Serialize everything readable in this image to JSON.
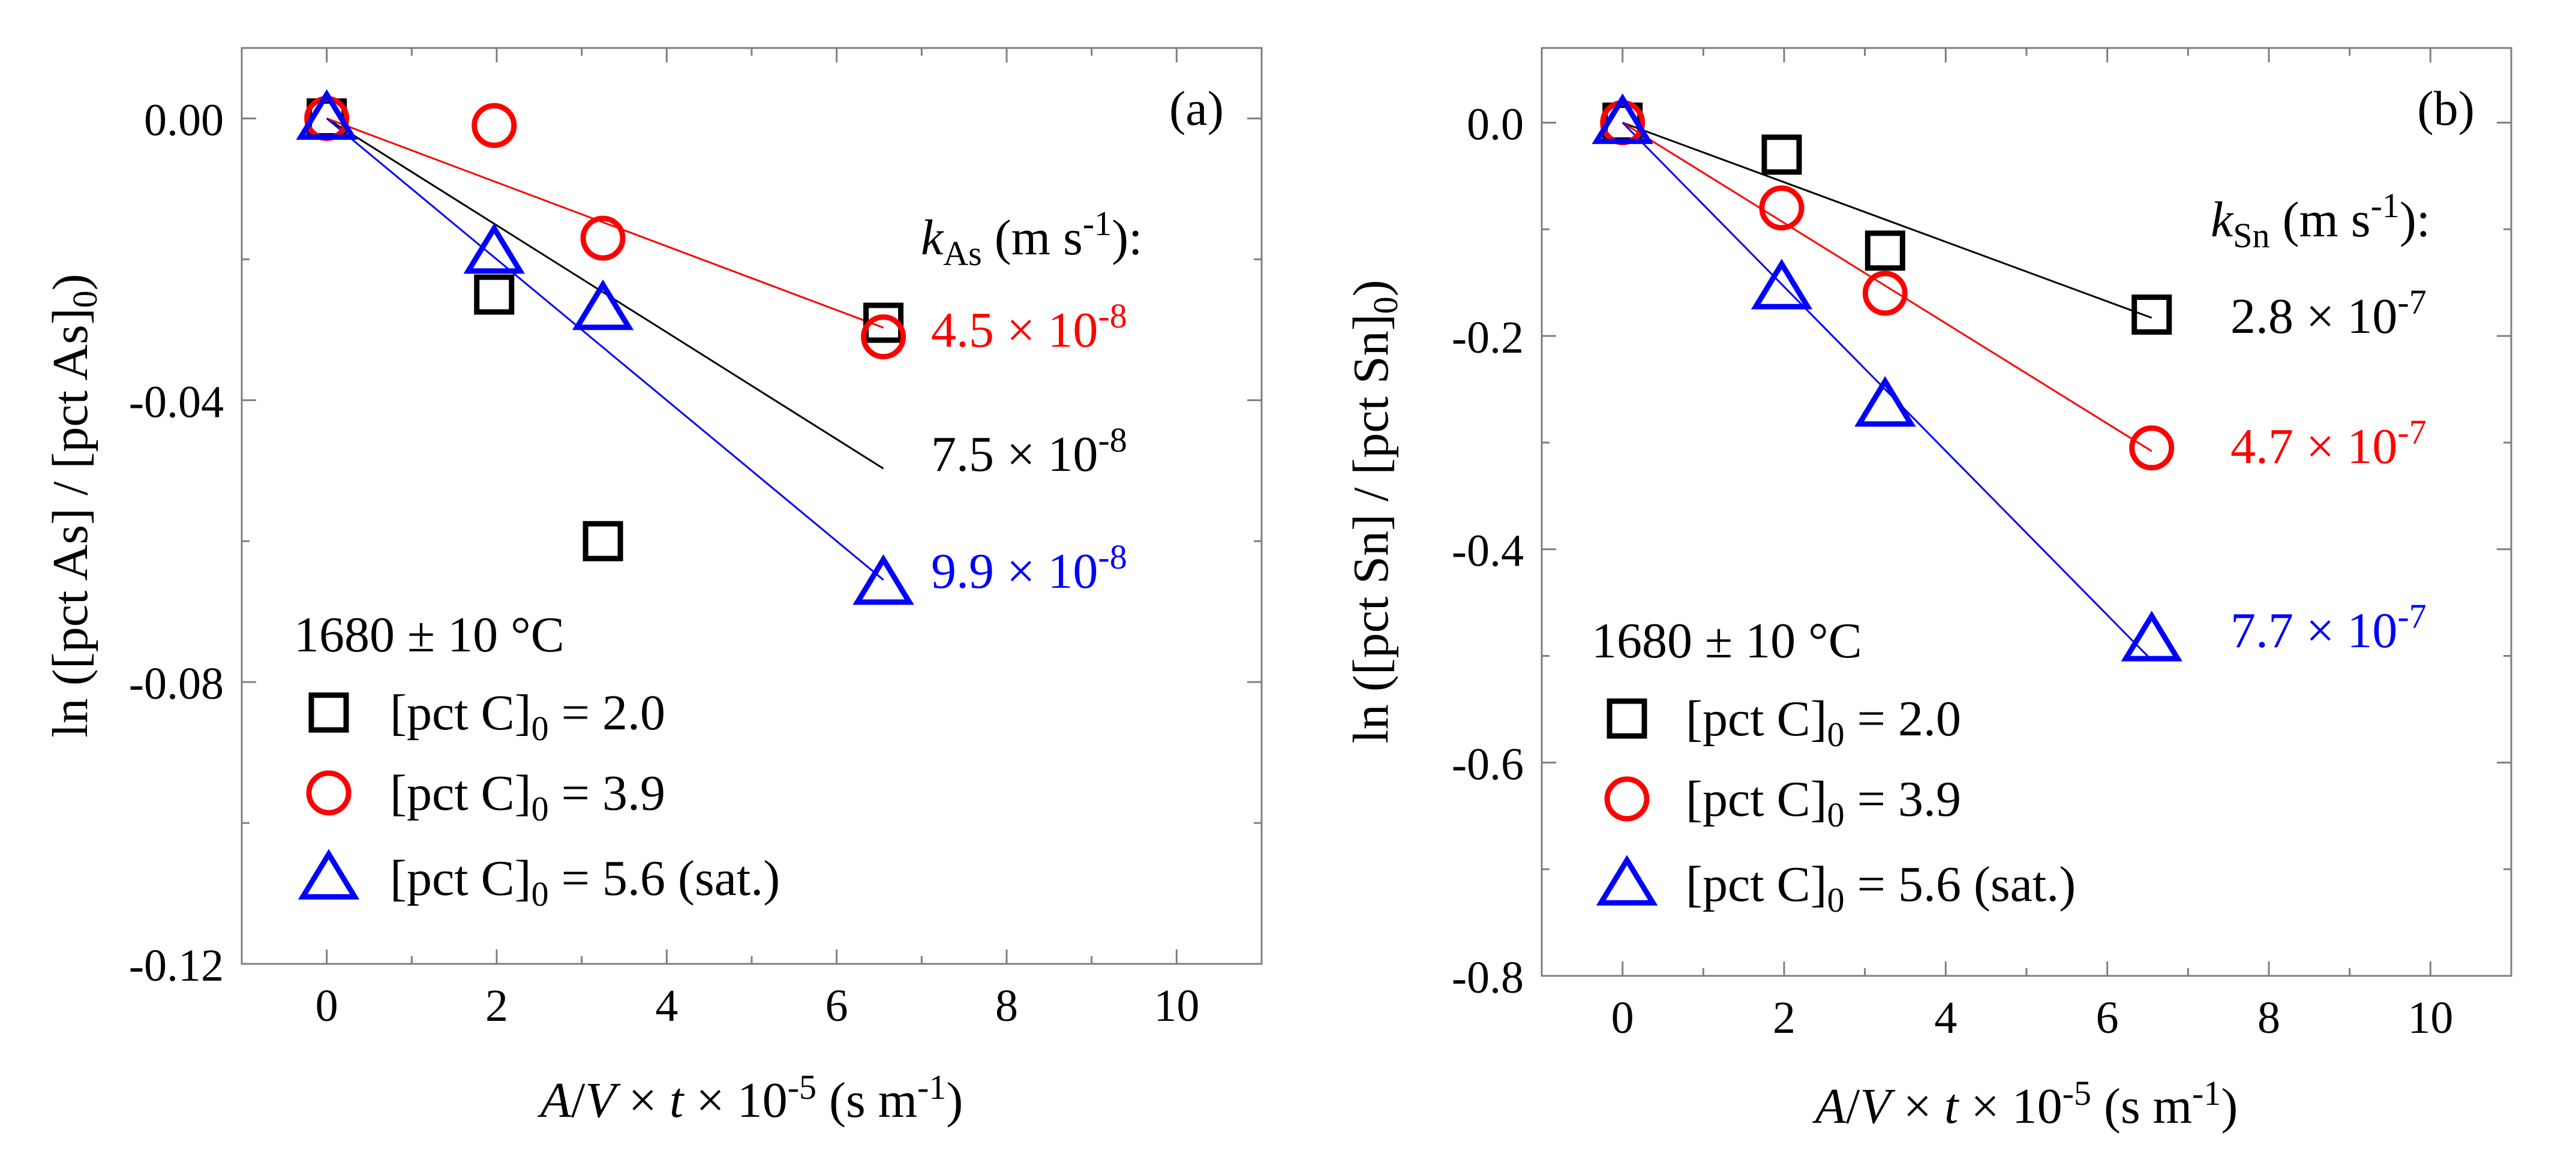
{
  "chart_data": [
    {
      "type": "scatter",
      "panel_label": "(a)",
      "xlabel": "A/V × t × 10-5 (s m-1)",
      "ylabel": "ln ([pct As] / [pct As]0)",
      "xlim": [
        -1,
        11
      ],
      "ylim": [
        -0.12,
        0.01
      ],
      "xticks": [
        0,
        2,
        4,
        6,
        8,
        10
      ],
      "yticks": [
        0.0,
        -0.04,
        -0.08,
        -0.12
      ],
      "xtick_labels": [
        "0",
        "2",
        "4",
        "6",
        "8",
        "10"
      ],
      "ytick_labels": [
        "0.00",
        "-0.04",
        "-0.08",
        "-0.12"
      ],
      "k_label": {
        "symbol": "k",
        "sub": "As",
        "unit": "(m s",
        "exp": "-1",
        "close": "):"
      },
      "temperature": "1680 ± 10 °C",
      "series": [
        {
          "name": "[pct C]0 = 2.0",
          "legend_prefix": "[pct C]",
          "legend_sub": "0",
          "legend_rest": " = 2.0",
          "marker": "square",
          "color": "#000000",
          "x": [
            0,
            1.97,
            3.25,
            6.55
          ],
          "y": [
            0.0,
            -0.025,
            -0.06,
            -0.029
          ],
          "fit_x": [
            0,
            6.55
          ],
          "fit_y": [
            0,
            -0.0497
          ],
          "rate_label": "7.5 × 10",
          "rate_exp": "-8"
        },
        {
          "name": "[pct C]0 = 3.9",
          "legend_prefix": "[pct C]",
          "legend_sub": "0",
          "legend_rest": " = 3.9",
          "marker": "circle",
          "color": "#ff0000",
          "x": [
            0,
            1.97,
            3.25,
            6.55
          ],
          "y": [
            0.0,
            -0.001,
            -0.017,
            -0.031
          ],
          "fit_x": [
            0,
            6.55
          ],
          "fit_y": [
            0,
            -0.0297
          ],
          "rate_label": "4.5 × 10",
          "rate_exp": "-8"
        },
        {
          "name": "[pct C]0 = 5.6 (sat.)",
          "legend_prefix": "[pct C]",
          "legend_sub": "0",
          "legend_rest": " = 5.6 (sat.)",
          "marker": "triangle",
          "color": "#0000ff",
          "x": [
            0,
            1.97,
            3.25,
            6.55
          ],
          "y": [
            0.0,
            -0.019,
            -0.027,
            -0.066
          ],
          "fit_x": [
            0,
            6.55
          ],
          "fit_y": [
            0,
            -0.0655
          ],
          "rate_label": "9.9 × 10",
          "rate_exp": "-8"
        }
      ]
    },
    {
      "type": "scatter",
      "panel_label": "(b)",
      "xlabel": "A/V × t × 10-5 (s m-1)",
      "ylabel": "ln ([pct Sn] / [pct Sn]0)",
      "xlim": [
        -1,
        11
      ],
      "ylim": [
        -0.8,
        0.07
      ],
      "xticks": [
        0,
        2,
        4,
        6,
        8,
        10
      ],
      "yticks": [
        0.0,
        -0.2,
        -0.4,
        -0.6,
        -0.8
      ],
      "xtick_labels": [
        "0",
        "2",
        "4",
        "6",
        "8",
        "10"
      ],
      "ytick_labels": [
        "0.0",
        "-0.2",
        "-0.4",
        "-0.6",
        "-0.8"
      ],
      "k_label": {
        "symbol": "k",
        "sub": "Sn",
        "unit": "(m s",
        "exp": "-1",
        "close": "):"
      },
      "temperature": "1680 ± 10 °C",
      "series": [
        {
          "name": "[pct C]0 = 2.0",
          "legend_prefix": "[pct C]",
          "legend_sub": "0",
          "legend_rest": " = 2.0",
          "marker": "square",
          "color": "#000000",
          "x": [
            0,
            1.97,
            3.25,
            6.55
          ],
          "y": [
            0.0,
            -0.03,
            -0.12,
            -0.18
          ],
          "fit_x": [
            0,
            6.55
          ],
          "fit_y": [
            0,
            -0.183
          ],
          "rate_label": "2.8 × 10",
          "rate_exp": "-7"
        },
        {
          "name": "[pct C]0 = 3.9",
          "legend_prefix": "[pct C]",
          "legend_sub": "0",
          "legend_rest": " = 3.9",
          "marker": "circle",
          "color": "#ff0000",
          "x": [
            0,
            1.97,
            3.25,
            6.55
          ],
          "y": [
            0.0,
            -0.08,
            -0.16,
            -0.305
          ],
          "fit_x": [
            0,
            6.55
          ],
          "fit_y": [
            0,
            -0.308
          ],
          "rate_label": "4.7 × 10",
          "rate_exp": "-7"
        },
        {
          "name": "[pct C]0 = 5.6 (sat.)",
          "legend_prefix": "[pct C]",
          "legend_sub": "0",
          "legend_rest": " = 5.6 (sat.)",
          "marker": "triangle",
          "color": "#0000ff",
          "x": [
            0,
            1.97,
            3.25,
            6.55
          ],
          "y": [
            0.0,
            -0.155,
            -0.265,
            -0.485
          ],
          "fit_x": [
            0,
            6.55
          ],
          "fit_y": [
            0,
            -0.504
          ],
          "rate_label": "7.7 × 10",
          "rate_exp": "-7"
        }
      ]
    }
  ]
}
